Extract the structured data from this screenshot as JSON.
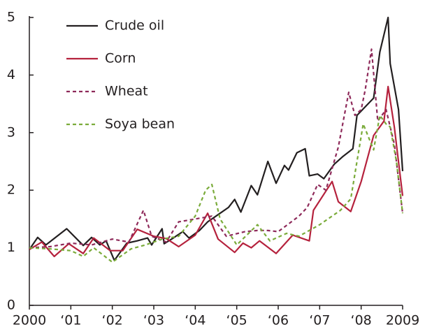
{
  "chart_data": {
    "type": "line",
    "legend": "upper left",
    "xlim": [
      2000,
      2009
    ],
    "ylim": [
      0,
      5
    ],
    "xticks": [
      2000,
      {
        "value": 2001,
        "label": "‘01"
      },
      {
        "value": 2002,
        "label": "‘02"
      },
      {
        "value": 2003,
        "label": "‘03"
      },
      {
        "value": 2004,
        "label": "‘04"
      },
      {
        "value": 2005,
        "label": "‘05"
      },
      {
        "value": 2006,
        "label": "‘06"
      },
      {
        "value": 2007,
        "label": "‘07"
      },
      {
        "value": 2008,
        "label": "‘08"
      },
      2009
    ],
    "yticks": [
      0,
      1,
      2,
      3,
      4,
      5
    ],
    "series": [
      {
        "name": "Crude oil",
        "color": "#231f20",
        "line_style": "solid",
        "x": [
          2000.0,
          2000.2,
          2000.4,
          2000.9,
          2001.3,
          2001.5,
          2001.7,
          2001.85,
          2002.05,
          2002.35,
          2002.6,
          2002.85,
          2002.95,
          2003.2,
          2003.25,
          2003.45,
          2003.7,
          2003.85,
          2004.1,
          2004.3,
          2004.6,
          2004.8,
          2004.95,
          2005.1,
          2005.35,
          2005.5,
          2005.75,
          2005.95,
          2006.15,
          2006.25,
          2006.45,
          2006.65,
          2006.75,
          2006.95,
          2007.1,
          2007.35,
          2007.55,
          2007.8,
          2007.9,
          2008.3,
          2008.45,
          2008.65,
          2008.7,
          2008.9,
          2009.0
        ],
        "values": [
          0.97,
          1.18,
          1.05,
          1.33,
          1.04,
          1.18,
          1.05,
          1.12,
          0.78,
          1.08,
          1.12,
          1.17,
          1.05,
          1.33,
          1.07,
          1.16,
          1.28,
          1.17,
          1.3,
          1.45,
          1.6,
          1.7,
          1.84,
          1.62,
          2.08,
          1.92,
          2.5,
          2.12,
          2.43,
          2.35,
          2.65,
          2.72,
          2.25,
          2.28,
          2.2,
          2.45,
          2.58,
          2.72,
          3.3,
          3.6,
          4.4,
          5.0,
          4.2,
          3.4,
          2.33
        ]
      },
      {
        "name": "Corn",
        "color": "#b5223d",
        "line_style": "solid",
        "x": [
          2000.0,
          2000.3,
          2000.6,
          2000.95,
          2001.3,
          2001.55,
          2001.95,
          2002.25,
          2002.6,
          2003.0,
          2003.3,
          2003.6,
          2004.0,
          2004.3,
          2004.55,
          2004.95,
          2005.15,
          2005.35,
          2005.55,
          2005.95,
          2006.35,
          2006.75,
          2006.85,
          2007.3,
          2007.45,
          2007.75,
          2008.0,
          2008.3,
          2008.55,
          2008.65,
          2008.8,
          2009.0
        ],
        "values": [
          0.97,
          1.1,
          0.85,
          1.07,
          0.9,
          1.17,
          0.95,
          0.95,
          1.32,
          1.2,
          1.16,
          1.02,
          1.22,
          1.6,
          1.15,
          0.92,
          1.08,
          1.0,
          1.12,
          0.9,
          1.22,
          1.12,
          1.65,
          2.15,
          1.8,
          1.63,
          2.15,
          2.95,
          3.2,
          3.8,
          3.1,
          1.9
        ]
      },
      {
        "name": "Wheat",
        "color": "#8e2a5a",
        "line_style": "dashed",
        "x": [
          2000.0,
          2000.5,
          2001.0,
          2001.5,
          2002.0,
          2002.4,
          2002.75,
          2002.95,
          2003.3,
          2003.6,
          2004.0,
          2004.4,
          2004.75,
          2005.2,
          2005.5,
          2005.75,
          2006.0,
          2006.5,
          2006.7,
          2006.95,
          2007.15,
          2007.45,
          2007.7,
          2007.85,
          2008.0,
          2008.1,
          2008.25,
          2008.4,
          2008.6,
          2008.8,
          2009.0
        ],
        "values": [
          1.0,
          1.02,
          1.08,
          1.05,
          1.15,
          1.1,
          1.65,
          1.2,
          1.1,
          1.45,
          1.5,
          1.55,
          1.2,
          1.28,
          1.3,
          1.3,
          1.28,
          1.55,
          1.7,
          2.1,
          2.0,
          2.75,
          3.7,
          3.3,
          3.4,
          3.75,
          4.45,
          3.2,
          3.4,
          2.8,
          1.6
        ]
      },
      {
        "name": "Soya bean",
        "color": "#7aab3a",
        "line_style": "dashed",
        "x": [
          2000.0,
          2000.5,
          2001.0,
          2001.3,
          2001.55,
          2002.0,
          2002.45,
          2002.8,
          2003.2,
          2003.6,
          2004.0,
          2004.25,
          2004.4,
          2004.6,
          2005.0,
          2005.5,
          2005.8,
          2006.2,
          2006.5,
          2007.0,
          2007.5,
          2007.75,
          2008.05,
          2008.3,
          2008.45,
          2008.6,
          2008.7,
          2008.85,
          2009.0
        ],
        "values": [
          1.0,
          0.98,
          0.95,
          0.85,
          1.0,
          0.75,
          0.98,
          1.05,
          1.15,
          1.2,
          1.55,
          2.0,
          2.1,
          1.5,
          1.05,
          1.4,
          1.12,
          1.25,
          1.2,
          1.4,
          1.65,
          1.85,
          3.15,
          2.7,
          3.3,
          3.15,
          3.1,
          2.5,
          1.6
        ]
      }
    ]
  }
}
